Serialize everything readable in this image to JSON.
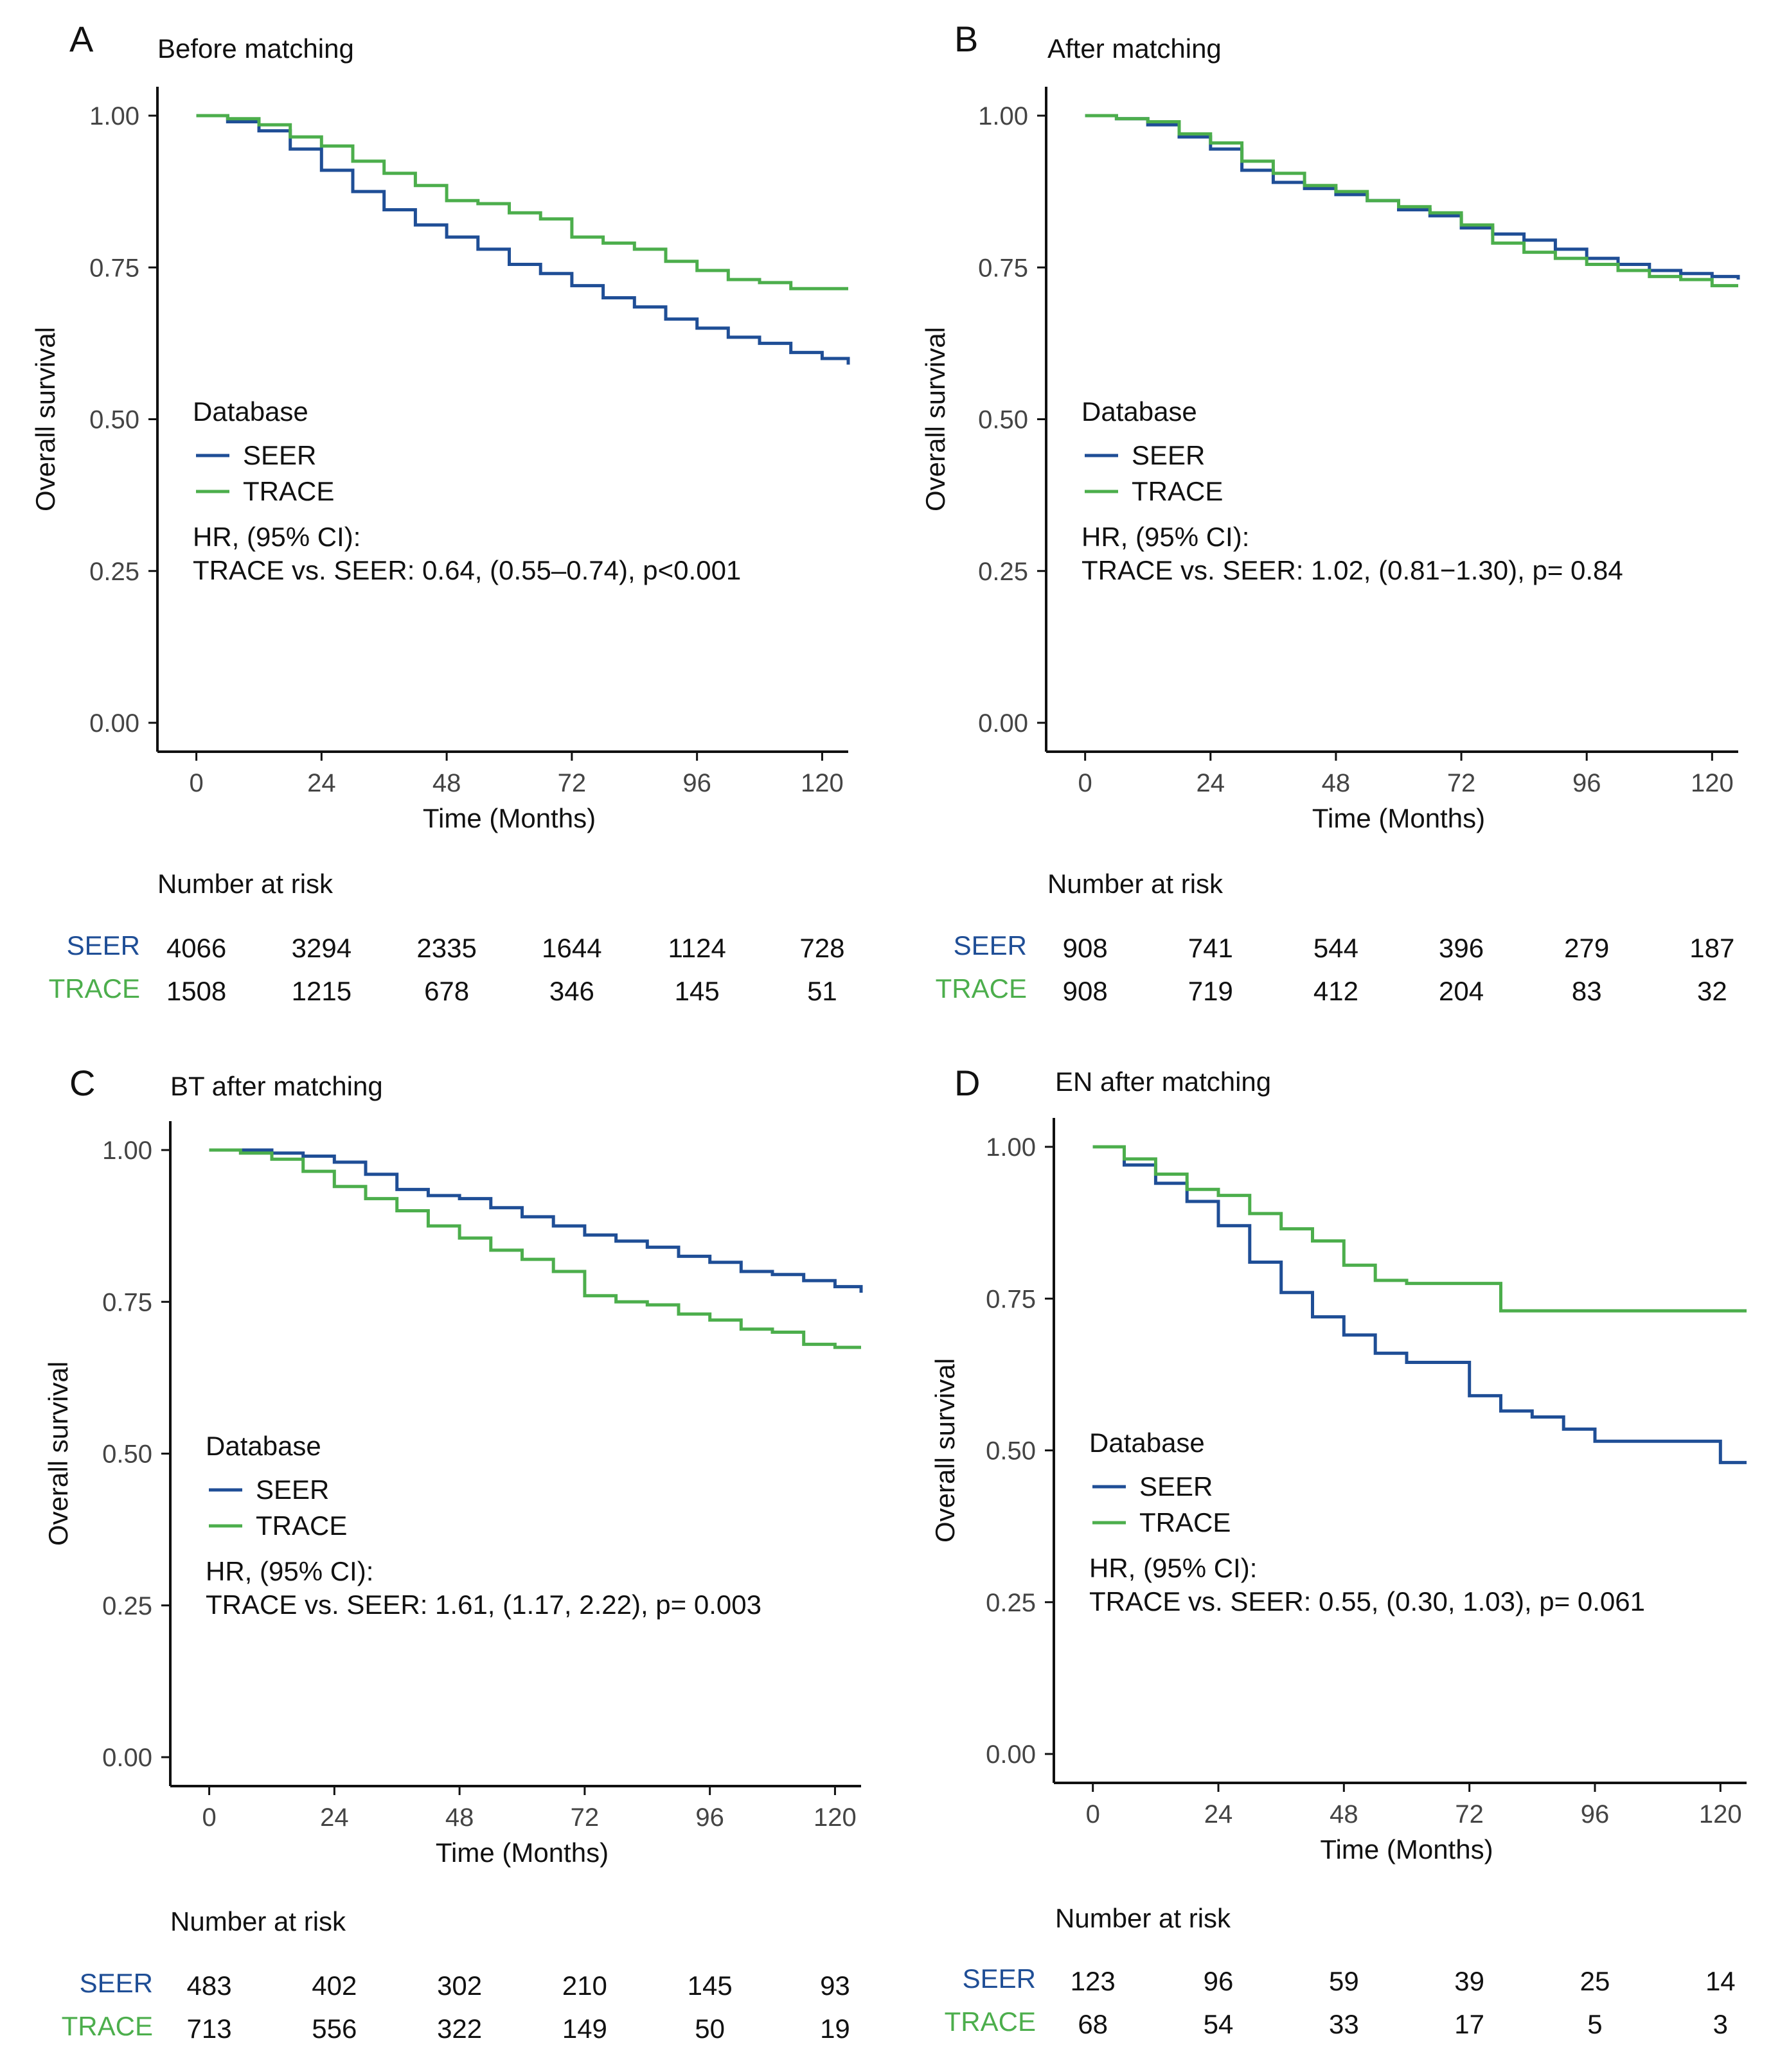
{
  "colors": {
    "seer": "#1f4e96",
    "trace": "#4cae4c",
    "axis": "#111111",
    "tick_label": "#444444"
  },
  "chart_data": [
    {
      "type": "line",
      "subtype": "kaplan-meier",
      "panel_letter": "A",
      "title": "Before matching",
      "xlabel": "Time (Months)",
      "ylabel": "Overall survival",
      "xlim": [
        -5,
        125
      ],
      "ylim": [
        0,
        1
      ],
      "xticks": [
        0,
        24,
        48,
        72,
        96,
        120
      ],
      "xtick_labels": [
        "0",
        "24",
        "48",
        "72",
        "96",
        "120"
      ],
      "yticks": [
        0,
        0.25,
        0.5,
        0.75,
        1.0
      ],
      "ytick_labels": [
        "0.00",
        "0.25",
        "0.50",
        "0.75",
        "1.00"
      ],
      "legend": {
        "title": "Database",
        "entries": [
          "SEER",
          "TRACE"
        ],
        "placement": "center-left"
      },
      "annotation": {
        "line1": "HR, (95% CI):",
        "line2": "TRACE vs. SEER: 0.64, (0.55–0.74), p<0.001"
      },
      "series": [
        {
          "name": "SEER",
          "color_key": "seer",
          "x": [
            0,
            6,
            12,
            18,
            24,
            30,
            36,
            42,
            48,
            54,
            60,
            66,
            72,
            78,
            84,
            90,
            96,
            102,
            108,
            114,
            120,
            125
          ],
          "y": [
            1.0,
            0.99,
            0.975,
            0.945,
            0.91,
            0.875,
            0.845,
            0.82,
            0.8,
            0.78,
            0.755,
            0.74,
            0.72,
            0.7,
            0.685,
            0.665,
            0.65,
            0.635,
            0.625,
            0.61,
            0.6,
            0.59
          ]
        },
        {
          "name": "TRACE",
          "color_key": "trace",
          "x": [
            0,
            6,
            12,
            18,
            24,
            30,
            36,
            42,
            48,
            54,
            60,
            66,
            72,
            78,
            84,
            90,
            96,
            102,
            108,
            114,
            120,
            125
          ],
          "y": [
            1.0,
            0.995,
            0.985,
            0.965,
            0.95,
            0.925,
            0.905,
            0.885,
            0.86,
            0.855,
            0.84,
            0.83,
            0.8,
            0.79,
            0.78,
            0.76,
            0.745,
            0.73,
            0.725,
            0.715,
            0.715,
            0.715
          ]
        }
      ],
      "risk_table": {
        "title": "Number at risk",
        "rows": [
          {
            "label": "SEER",
            "color_key": "seer",
            "values": [
              "4066",
              "3294",
              "2335",
              "1644",
              "1124",
              "728"
            ]
          },
          {
            "label": "TRACE",
            "color_key": "trace",
            "values": [
              "1508",
              "1215",
              "678",
              "346",
              "145",
              "51"
            ]
          }
        ]
      }
    },
    {
      "type": "line",
      "subtype": "kaplan-meier",
      "panel_letter": "B",
      "title": "After matching",
      "xlabel": "Time (Months)",
      "ylabel": "Overall survival",
      "xlim": [
        -5,
        125
      ],
      "ylim": [
        0,
        1
      ],
      "xticks": [
        0,
        24,
        48,
        72,
        96,
        120
      ],
      "xtick_labels": [
        "0",
        "24",
        "48",
        "72",
        "96",
        "120"
      ],
      "yticks": [
        0,
        0.25,
        0.5,
        0.75,
        1.0
      ],
      "ytick_labels": [
        "0.00",
        "0.25",
        "0.50",
        "0.75",
        "1.00"
      ],
      "legend": {
        "title": "Database",
        "entries": [
          "SEER",
          "TRACE"
        ],
        "placement": "center-left"
      },
      "annotation": {
        "line1": "HR, (95% CI):",
        "line2": "TRACE vs. SEER: 1.02, (0.81−1.30), p= 0.84"
      },
      "series": [
        {
          "name": "SEER",
          "color_key": "seer",
          "x": [
            0,
            6,
            12,
            18,
            24,
            30,
            36,
            42,
            48,
            54,
            60,
            66,
            72,
            78,
            84,
            90,
            96,
            102,
            108,
            114,
            120,
            125
          ],
          "y": [
            1.0,
            0.995,
            0.985,
            0.965,
            0.945,
            0.91,
            0.89,
            0.88,
            0.87,
            0.86,
            0.845,
            0.835,
            0.815,
            0.805,
            0.795,
            0.78,
            0.765,
            0.755,
            0.745,
            0.74,
            0.735,
            0.73
          ]
        },
        {
          "name": "TRACE",
          "color_key": "trace",
          "x": [
            0,
            6,
            12,
            18,
            24,
            30,
            36,
            42,
            48,
            54,
            60,
            66,
            72,
            78,
            84,
            90,
            96,
            102,
            108,
            114,
            120,
            125
          ],
          "y": [
            1.0,
            0.995,
            0.99,
            0.97,
            0.955,
            0.925,
            0.905,
            0.885,
            0.875,
            0.86,
            0.85,
            0.84,
            0.82,
            0.79,
            0.775,
            0.765,
            0.755,
            0.745,
            0.735,
            0.73,
            0.72,
            0.72
          ]
        }
      ],
      "risk_table": {
        "title": "Number at risk",
        "rows": [
          {
            "label": "SEER",
            "color_key": "seer",
            "values": [
              "908",
              "741",
              "544",
              "396",
              "279",
              "187"
            ]
          },
          {
            "label": "TRACE",
            "color_key": "trace",
            "values": [
              "908",
              "719",
              "412",
              "204",
              "83",
              "32"
            ]
          }
        ]
      }
    },
    {
      "type": "line",
      "subtype": "kaplan-meier",
      "panel_letter": "C",
      "title": "BT after matching",
      "xlabel": "Time (Months)",
      "ylabel": "Overall survival",
      "xlim": [
        -5,
        125
      ],
      "ylim": [
        0,
        1
      ],
      "xticks": [
        0,
        24,
        48,
        72,
        96,
        120
      ],
      "xtick_labels": [
        "0",
        "24",
        "48",
        "72",
        "96",
        "120"
      ],
      "yticks": [
        0,
        0.25,
        0.5,
        0.75,
        1.0
      ],
      "ytick_labels": [
        "0.00",
        "0.25",
        "0.50",
        "0.75",
        "1.00"
      ],
      "legend": {
        "title": "Database",
        "entries": [
          "SEER",
          "TRACE"
        ],
        "placement": "center-left"
      },
      "annotation": {
        "line1": "HR, (95% CI):",
        "line2": "TRACE vs. SEER: 1.61, (1.17, 2.22), p= 0.003"
      },
      "series": [
        {
          "name": "SEER",
          "color_key": "seer",
          "x": [
            0,
            6,
            12,
            18,
            24,
            30,
            36,
            42,
            48,
            54,
            60,
            66,
            72,
            78,
            84,
            90,
            96,
            102,
            108,
            114,
            120,
            125
          ],
          "y": [
            1.0,
            1.0,
            0.995,
            0.99,
            0.98,
            0.96,
            0.935,
            0.925,
            0.92,
            0.905,
            0.89,
            0.875,
            0.86,
            0.85,
            0.84,
            0.825,
            0.815,
            0.8,
            0.795,
            0.785,
            0.775,
            0.765
          ]
        },
        {
          "name": "TRACE",
          "color_key": "trace",
          "x": [
            0,
            6,
            12,
            18,
            24,
            30,
            36,
            42,
            48,
            54,
            60,
            66,
            72,
            78,
            84,
            90,
            96,
            102,
            108,
            114,
            120,
            125
          ],
          "y": [
            1.0,
            0.995,
            0.985,
            0.965,
            0.94,
            0.92,
            0.9,
            0.875,
            0.855,
            0.835,
            0.82,
            0.8,
            0.76,
            0.75,
            0.745,
            0.73,
            0.72,
            0.705,
            0.7,
            0.68,
            0.675,
            0.675
          ]
        }
      ],
      "risk_table": {
        "title": "Number at risk",
        "rows": [
          {
            "label": "SEER",
            "color_key": "seer",
            "values": [
              "483",
              "402",
              "302",
              "210",
              "145",
              "93"
            ]
          },
          {
            "label": "TRACE",
            "color_key": "trace",
            "values": [
              "713",
              "556",
              "322",
              "149",
              "50",
              "19"
            ]
          }
        ]
      }
    },
    {
      "type": "line",
      "subtype": "kaplan-meier",
      "panel_letter": "D",
      "title": "EN after matching",
      "xlabel": "Time (Months)",
      "ylabel": "Overall survival",
      "xlim": [
        -5,
        125
      ],
      "ylim": [
        0,
        1
      ],
      "xticks": [
        0,
        24,
        48,
        72,
        96,
        120
      ],
      "xtick_labels": [
        "0",
        "24",
        "48",
        "72",
        "96",
        "120"
      ],
      "yticks": [
        0,
        0.25,
        0.5,
        0.75,
        1.0
      ],
      "ytick_labels": [
        "0.00",
        "0.25",
        "0.50",
        "0.75",
        "1.00"
      ],
      "legend": {
        "title": "Database",
        "entries": [
          "SEER",
          "TRACE"
        ],
        "placement": "center-left"
      },
      "annotation": {
        "line1": "HR, (95% CI):",
        "line2": "TRACE vs. SEER: 0.55, (0.30, 1.03), p= 0.061"
      },
      "series": [
        {
          "name": "SEER",
          "color_key": "seer",
          "x": [
            0,
            6,
            12,
            18,
            24,
            30,
            36,
            42,
            48,
            54,
            60,
            66,
            72,
            78,
            84,
            90,
            96,
            102,
            108,
            114,
            120,
            125
          ],
          "y": [
            1.0,
            0.97,
            0.94,
            0.91,
            0.87,
            0.81,
            0.76,
            0.72,
            0.69,
            0.66,
            0.645,
            0.645,
            0.59,
            0.565,
            0.555,
            0.535,
            0.515,
            0.515,
            0.515,
            0.515,
            0.48,
            0.48
          ]
        },
        {
          "name": "TRACE",
          "color_key": "trace",
          "x": [
            0,
            6,
            12,
            18,
            24,
            30,
            36,
            42,
            48,
            54,
            60,
            66,
            72,
            78,
            84,
            90,
            96,
            102,
            108,
            114,
            120,
            125
          ],
          "y": [
            1.0,
            0.98,
            0.955,
            0.93,
            0.92,
            0.89,
            0.865,
            0.845,
            0.805,
            0.78,
            0.775,
            0.775,
            0.775,
            0.73,
            0.73,
            0.73,
            0.73,
            0.73,
            0.73,
            0.73,
            0.73,
            0.73
          ]
        }
      ],
      "risk_table": {
        "title": "Number at risk",
        "rows": [
          {
            "label": "SEER",
            "color_key": "seer",
            "values": [
              "123",
              "96",
              "59",
              "39",
              "25",
              "14"
            ]
          },
          {
            "label": "TRACE",
            "color_key": "trace",
            "values": [
              "68",
              "54",
              "33",
              "17",
              "5",
              "3"
            ]
          }
        ]
      }
    }
  ]
}
